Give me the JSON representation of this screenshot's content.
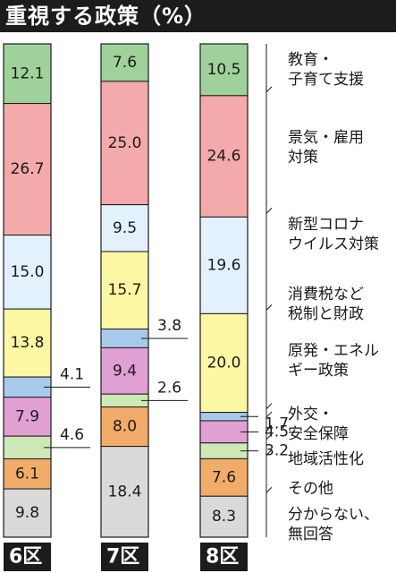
{
  "header": {
    "title": "重視する政策（%）"
  },
  "chart_data": {
    "type": "bar",
    "stacked": true,
    "title": "重視する政策（%）",
    "unit": "%",
    "categories": [
      "6区",
      "7区",
      "8区"
    ],
    "series": [
      {
        "name": "教育・子育て支援",
        "color": "#9fd29b",
        "values": [
          12.1,
          7.6,
          10.5
        ]
      },
      {
        "name": "景気・雇用対策",
        "color": "#f4a9aa",
        "values": [
          26.7,
          25.0,
          24.6
        ]
      },
      {
        "name": "新型コロナウイルス対策",
        "color": "#e2f1fb",
        "values": [
          15.0,
          9.5,
          19.6
        ]
      },
      {
        "name": "消費税など税制と財政",
        "color": "#fbf7a3",
        "values": [
          13.8,
          15.7,
          20.0
        ]
      },
      {
        "name": "原発・エネルギー政策",
        "color": "#a9c9ec",
        "values": [
          4.1,
          3.8,
          1.7
        ]
      },
      {
        "name": "外交・安全保障",
        "color": "#e1a0d3",
        "values": [
          7.9,
          9.4,
          4.5
        ]
      },
      {
        "name": "地域活性化",
        "color": "#cfe8b7",
        "values": [
          4.6,
          2.6,
          3.2
        ]
      },
      {
        "name": "その他",
        "color": "#f2ac69",
        "values": [
          6.1,
          8.0,
          7.6
        ]
      },
      {
        "name": "分からない、無回答",
        "color": "#d9d9d9",
        "values": [
          9.8,
          18.4,
          8.3
        ]
      }
    ],
    "value_labels": [
      [
        "12.1",
        "7.6",
        "10.5"
      ],
      [
        "26.7",
        "25.0",
        "24.6"
      ],
      [
        "15.0",
        "9.5",
        "19.6"
      ],
      [
        "13.8",
        "15.7",
        "20.0"
      ],
      [
        "4.1",
        "3.8",
        "1.7"
      ],
      [
        "7.9",
        "9.4",
        "4.5"
      ],
      [
        "4.6",
        "2.6",
        "3.2"
      ],
      [
        "6.1",
        "8.0",
        "7.6"
      ],
      [
        "9.8",
        "18.4",
        "8.3"
      ]
    ],
    "legend_labels": [
      [
        "教育・",
        "子育て支援"
      ],
      [
        "景気・雇用",
        "対策"
      ],
      [
        "新型コロナ",
        "ウイルス対策"
      ],
      [
        "消費税など",
        "税制と財政"
      ],
      [
        "原発・エネル",
        "ギー政策"
      ],
      [
        "外交・",
        "安全保障"
      ],
      [
        "地域活性化"
      ],
      [
        "その他"
      ],
      [
        "分からない、",
        "無回答"
      ]
    ],
    "legend_placement": "right",
    "grid": false
  }
}
